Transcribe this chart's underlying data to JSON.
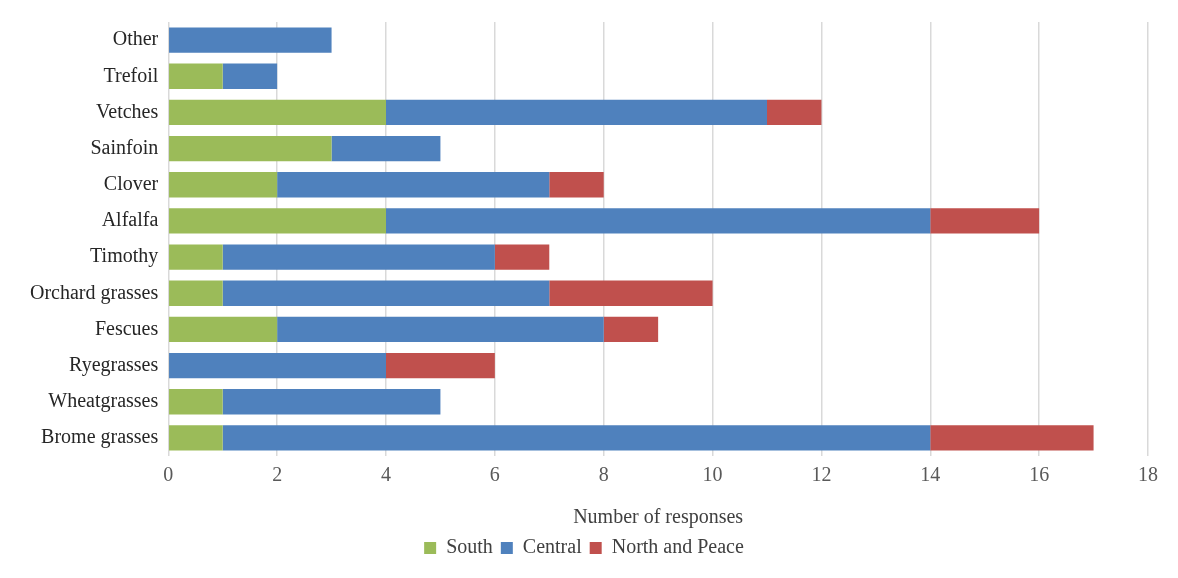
{
  "chart_data": {
    "type": "bar",
    "orientation": "horizontal",
    "stacked": true,
    "categories": [
      "Other",
      "Trefoil",
      "Vetches",
      "Sainfoin",
      "Clover",
      "Alfalfa",
      "Timothy",
      "Orchard grasses",
      "Fescues",
      "Ryegrasses",
      "Wheatgrasses",
      "Brome grasses"
    ],
    "series": [
      {
        "name": "South",
        "color": "#9bbb59",
        "values": [
          0,
          1,
          4,
          3,
          2,
          4,
          1,
          1,
          2,
          0,
          1,
          1
        ]
      },
      {
        "name": "Central",
        "color": "#4f81bd",
        "values": [
          3,
          1,
          7,
          2,
          5,
          10,
          5,
          6,
          6,
          4,
          4,
          13
        ]
      },
      {
        "name": "North and Peace",
        "color": "#c0504d",
        "values": [
          0,
          0,
          1,
          0,
          1,
          2,
          1,
          3,
          1,
          2,
          0,
          3
        ]
      }
    ],
    "xlabel": "Number of responses",
    "xlim": [
      0,
      18
    ],
    "xticks": [
      0,
      2,
      4,
      6,
      8,
      10,
      12,
      14,
      16,
      18
    ],
    "grid": "x",
    "legend": "bottom"
  }
}
